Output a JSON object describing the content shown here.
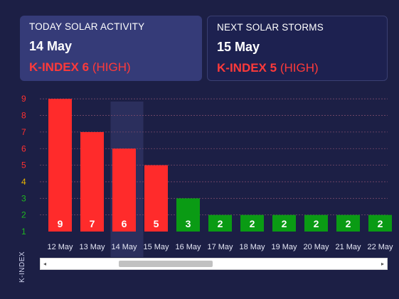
{
  "today": {
    "label": "TODAY SOLAR ACTIVITY",
    "date": "14 May",
    "kindex_label": "K-INDEX 6",
    "level": "(HIGH)"
  },
  "next": {
    "label": "NEXT SOLAR STORMS",
    "date": "15 May",
    "kindex_label": "K-INDEX 5",
    "level": "(HIGH)"
  },
  "colors": {
    "high": "#ff2b2b",
    "low": "#0a9b14",
    "axis_high": "#ff3030",
    "axis_mid": "#e8b400",
    "axis_low": "#1fb81f",
    "highlight": "#2e3261"
  },
  "scrollbar": {
    "left_arrow": "◂",
    "right_arrow": "▸"
  },
  "chart_data": {
    "type": "bar",
    "ylabel": "K-INDEX",
    "ylim": [
      1,
      9
    ],
    "yticks": [
      1,
      2,
      3,
      4,
      5,
      6,
      7,
      8,
      9
    ],
    "categories": [
      "12 May",
      "13 May",
      "14 May",
      "15 May",
      "16 May",
      "17 May",
      "18 May",
      "19 May",
      "20 May",
      "21 May",
      "22 May"
    ],
    "values": [
      9,
      7,
      6,
      5,
      3,
      2,
      2,
      2,
      2,
      2,
      2
    ],
    "highlighted_category": "14 May",
    "grid": "horizontal dashed"
  }
}
